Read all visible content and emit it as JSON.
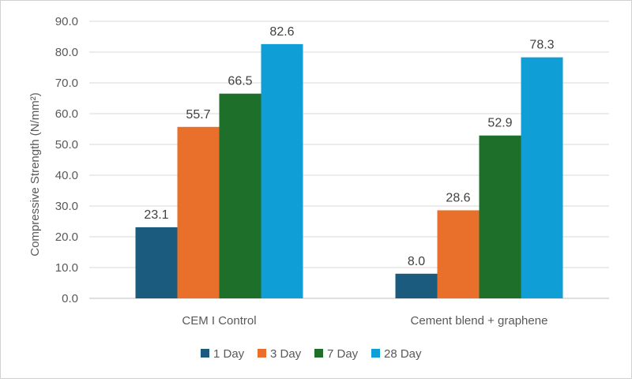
{
  "chart_data": {
    "type": "bar",
    "categories": [
      "CEM I Control",
      "Cement blend + graphene"
    ],
    "series": [
      {
        "name": "1 Day",
        "values": [
          23.1,
          8.0
        ],
        "color": "#1b5b7e",
        "labels": [
          "23.1",
          "8.0"
        ]
      },
      {
        "name": "3 Day",
        "values": [
          55.7,
          28.6
        ],
        "color": "#e8702a",
        "labels": [
          "55.7",
          "28.6"
        ]
      },
      {
        "name": "7 Day",
        "values": [
          66.5,
          52.9
        ],
        "color": "#1d6f2a",
        "labels": [
          "66.5",
          "52.9"
        ]
      },
      {
        "name": "28 Day",
        "values": [
          82.6,
          78.3
        ],
        "color": "#0f9ed5",
        "labels": [
          "82.6",
          "78.3"
        ]
      }
    ],
    "title": "",
    "xlabel": "",
    "ylabel": "Compressive Strength (N/mm²)",
    "ylim": [
      0,
      90
    ],
    "yticks": [
      "0.0",
      "10.0",
      "20.0",
      "30.0",
      "40.0",
      "50.0",
      "60.0",
      "70.0",
      "80.0",
      "90.0"
    ],
    "grid": true,
    "legend": "bottom"
  }
}
